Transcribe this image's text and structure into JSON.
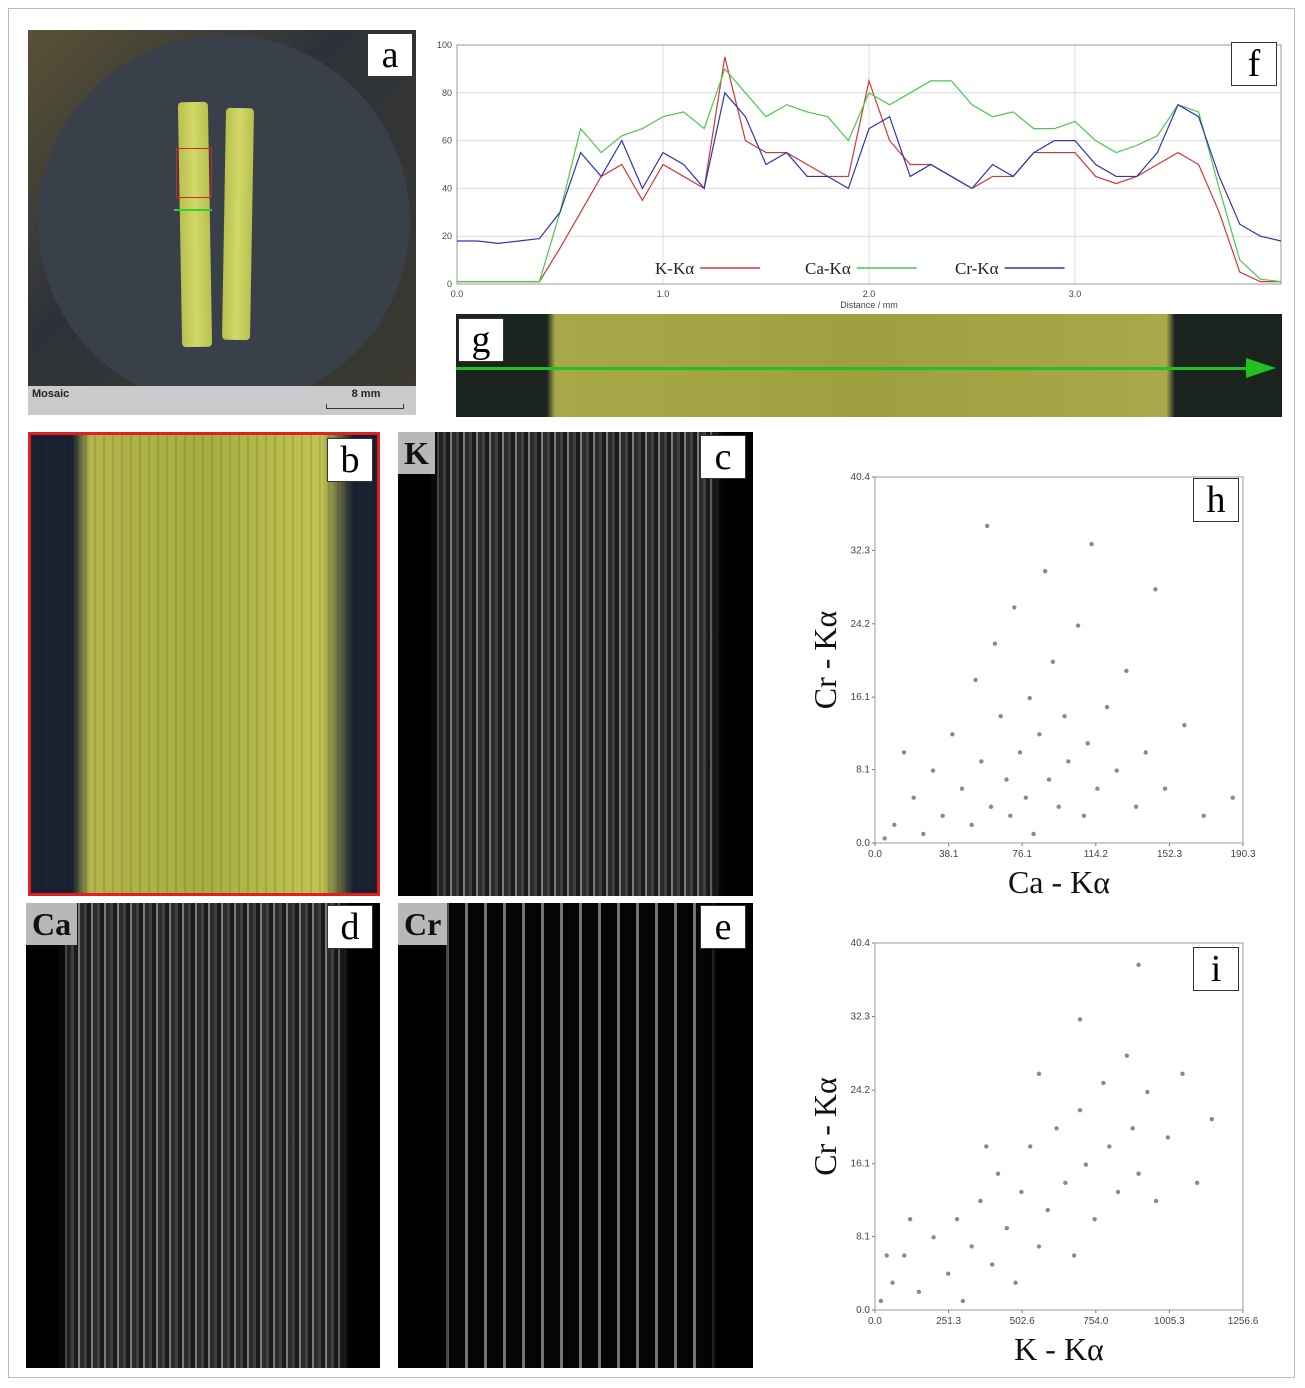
{
  "panels": {
    "a": {
      "label": "a",
      "caption": "Mosaic",
      "scale_bar": "8 mm"
    },
    "b": {
      "label": "b"
    },
    "c": {
      "label": "c",
      "element": "K"
    },
    "d": {
      "label": "d",
      "element": "Ca"
    },
    "e": {
      "label": "e",
      "element": "Cr"
    },
    "f": {
      "label": "f"
    },
    "g": {
      "label": "g"
    },
    "h": {
      "label": "h"
    },
    "i": {
      "label": "i"
    }
  },
  "chart_data": [
    {
      "type": "line",
      "x_label": "Distance / mm",
      "x": [
        0,
        0.1,
        0.2,
        0.3,
        0.4,
        0.5,
        0.6,
        0.7,
        0.8,
        0.9,
        1.0,
        1.1,
        1.2,
        1.3,
        1.4,
        1.5,
        1.6,
        1.7,
        1.8,
        1.9,
        2.0,
        2.1,
        2.2,
        2.3,
        2.4,
        2.5,
        2.6,
        2.7,
        2.8,
        2.9,
        3.0,
        3.1,
        3.2,
        3.3,
        3.4,
        3.5,
        3.6,
        3.7,
        3.8,
        3.9,
        4.0
      ],
      "xlim": [
        0,
        4
      ],
      "xticks": [
        {
          "value": 0,
          "label": "0.0"
        },
        {
          "value": 1,
          "label": "1.0"
        },
        {
          "value": 2,
          "label": "2.0"
        },
        {
          "value": 3,
          "label": "3.0"
        }
      ],
      "ylim": [
        0,
        100
      ],
      "yticks": [
        0,
        20,
        40,
        60,
        80,
        100
      ],
      "grid": true,
      "series": [
        {
          "name": "K-Kα",
          "color": "#d03838",
          "values": [
            1,
            1,
            1,
            1,
            1,
            15,
            30,
            45,
            50,
            35,
            50,
            45,
            40,
            95,
            60,
            55,
            55,
            50,
            45,
            45,
            85,
            60,
            50,
            50,
            45,
            40,
            45,
            45,
            55,
            55,
            55,
            45,
            42,
            45,
            50,
            55,
            50,
            30,
            5,
            1,
            1
          ]
        },
        {
          "name": "Ca-Kα",
          "color": "#4cc84c",
          "values": [
            1,
            1,
            1,
            1,
            1,
            30,
            65,
            55,
            62,
            65,
            70,
            72,
            65,
            90,
            80,
            70,
            75,
            72,
            70,
            60,
            80,
            75,
            80,
            85,
            85,
            75,
            70,
            72,
            65,
            65,
            68,
            60,
            55,
            58,
            62,
            75,
            72,
            40,
            10,
            2,
            1
          ]
        },
        {
          "name": "Cr-Kα",
          "color": "#3434b0",
          "values": [
            18,
            18,
            17,
            18,
            19,
            30,
            55,
            45,
            60,
            40,
            55,
            50,
            40,
            80,
            70,
            50,
            55,
            45,
            45,
            40,
            65,
            70,
            45,
            50,
            45,
            40,
            50,
            45,
            55,
            60,
            60,
            50,
            45,
            45,
            55,
            75,
            70,
            45,
            25,
            20,
            18
          ]
        }
      ]
    },
    {
      "type": "scatter",
      "x_label": "Ca - Kα",
      "y_label": "Cr - Kα",
      "color": "#8a8a8a",
      "xlim": [
        0,
        190.3
      ],
      "xticks": [
        {
          "value": 0,
          "label": "0.0"
        },
        38.1,
        76.1,
        114.2,
        152.3,
        190.3
      ],
      "ylim": [
        0,
        40.4
      ],
      "yticks": [
        {
          "value": 0,
          "label": "0.0"
        },
        8.1,
        16.1,
        24.2,
        32.3,
        40.4
      ],
      "x": [
        10,
        20,
        25,
        30,
        35,
        40,
        45,
        50,
        52,
        55,
        60,
        62,
        65,
        68,
        70,
        72,
        75,
        78,
        80,
        82,
        85,
        88,
        90,
        92,
        95,
        98,
        100,
        105,
        108,
        110,
        115,
        120,
        125,
        130,
        135,
        140,
        145,
        150,
        160,
        170,
        5,
        15,
        58,
        112,
        185
      ],
      "values": [
        2,
        5,
        1,
        8,
        3,
        12,
        6,
        2,
        18,
        9,
        4,
        22,
        14,
        7,
        3,
        26,
        10,
        5,
        16,
        1,
        12,
        30,
        7,
        20,
        4,
        14,
        9,
        24,
        3,
        11,
        6,
        15,
        8,
        19,
        4,
        10,
        28,
        6,
        13,
        3,
        0.5,
        10,
        35,
        33,
        5
      ]
    },
    {
      "type": "scatter",
      "x_label": "K - Kα",
      "y_label": "Cr - Kα",
      "color": "#8a8a8a",
      "xlim": [
        0,
        1256.6
      ],
      "xticks": [
        {
          "value": 0,
          "label": "0.0"
        },
        251.3,
        502.6,
        {
          "value": 754,
          "label": "754.0"
        },
        1005.3,
        1256.6
      ],
      "ylim": [
        0,
        40.4
      ],
      "yticks": [
        {
          "value": 0,
          "label": "0.0"
        },
        8.1,
        16.1,
        24.2,
        32.3,
        40.4
      ],
      "x": [
        20,
        60,
        100,
        150,
        200,
        250,
        280,
        300,
        330,
        360,
        400,
        420,
        450,
        480,
        500,
        530,
        560,
        590,
        620,
        650,
        680,
        700,
        720,
        750,
        780,
        800,
        830,
        860,
        880,
        900,
        930,
        960,
        1000,
        1050,
        1100,
        1150,
        700,
        900,
        40,
        120,
        380,
        560
      ],
      "values": [
        1,
        3,
        6,
        2,
        8,
        4,
        10,
        1,
        7,
        12,
        5,
        15,
        9,
        3,
        13,
        18,
        7,
        11,
        20,
        14,
        6,
        22,
        16,
        10,
        25,
        18,
        13,
        28,
        20,
        15,
        24,
        12,
        19,
        26,
        14,
        21,
        32,
        38,
        6,
        10,
        18,
        26
      ]
    }
  ]
}
